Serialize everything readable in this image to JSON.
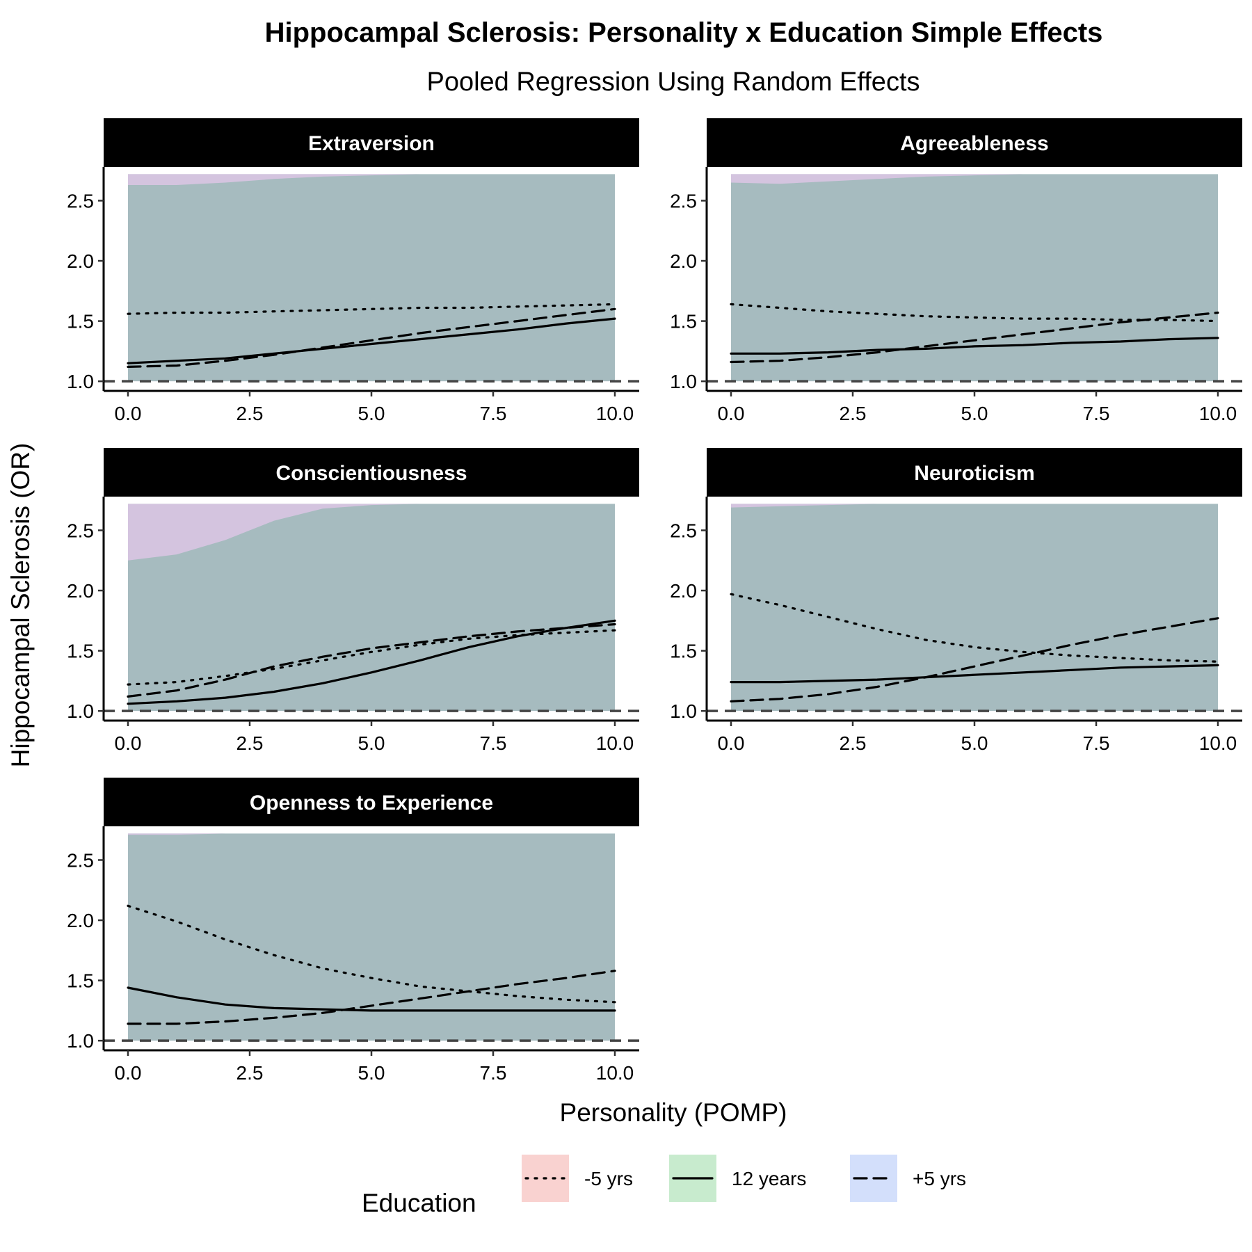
{
  "chart_data": {
    "type": "line",
    "title": "Hippocampal Sclerosis: Personality x Education Simple Effects",
    "subtitle": "Pooled Regression Using Random Effects",
    "xlabel": "Personality (POMP)",
    "ylabel": "Hippocampal Sclerosis (OR)",
    "xlim": [
      -0.5,
      10.5
    ],
    "ylim": [
      0.92,
      2.78
    ],
    "x_ticks": [
      0,
      2.5,
      5,
      7.5,
      10
    ],
    "x_tick_labels": [
      "0.0",
      "2.5",
      "5.0",
      "7.5",
      "10.0"
    ],
    "y_ticks": [
      1.0,
      1.5,
      2.0,
      2.5
    ],
    "y_tick_labels": [
      "1.0",
      "1.5",
      "2.0",
      "2.5"
    ],
    "reference_line": 1.0,
    "grid": false,
    "band_colors": {
      "-5 yrs": "#F8766D",
      "12 years": "#00BA38",
      "+5 yrs": "#619CFF"
    },
    "band_fill_color": "#A6BBBF",
    "top_tint_color": "#D4C4DF",
    "legend": {
      "title": "Education",
      "position": "bottom",
      "entries": [
        {
          "label": "-5 yrs",
          "linetype": "dotted",
          "fill": "#F9D2D0"
        },
        {
          "label": "12 years",
          "linetype": "solid",
          "fill": "#C8EBCE"
        },
        {
          "label": "+5 yrs",
          "linetype": "dashed",
          "fill": "#D3DFFB"
        }
      ]
    },
    "panels": [
      {
        "name": "Extraversion",
        "x": [
          0,
          1,
          2,
          3,
          4,
          5,
          6,
          7,
          8,
          9,
          10
        ],
        "band_upper": 2.72,
        "band_lower": 1.0,
        "tint_lower": [
          2.63,
          2.63,
          2.65,
          2.68,
          2.7,
          2.71,
          2.72,
          2.72,
          2.72,
          2.72,
          2.72
        ],
        "series": [
          {
            "name": "-5 yrs",
            "linetype": "dotted",
            "values": [
              1.56,
              1.57,
              1.57,
              1.58,
              1.59,
              1.6,
              1.61,
              1.61,
              1.62,
              1.63,
              1.64
            ]
          },
          {
            "name": "12 years",
            "linetype": "solid",
            "values": [
              1.15,
              1.17,
              1.19,
              1.23,
              1.27,
              1.31,
              1.35,
              1.39,
              1.43,
              1.48,
              1.52
            ]
          },
          {
            "name": "+5 yrs",
            "linetype": "dashed",
            "values": [
              1.12,
              1.13,
              1.17,
              1.22,
              1.28,
              1.34,
              1.4,
              1.45,
              1.5,
              1.55,
              1.6
            ]
          }
        ]
      },
      {
        "name": "Agreeableness",
        "x": [
          0,
          1,
          2,
          3,
          4,
          5,
          6,
          7,
          8,
          9,
          10
        ],
        "band_upper": 2.72,
        "band_lower": 1.0,
        "tint_lower": [
          2.65,
          2.64,
          2.66,
          2.68,
          2.7,
          2.71,
          2.72,
          2.72,
          2.72,
          2.72,
          2.72
        ],
        "series": [
          {
            "name": "-5 yrs",
            "linetype": "dotted",
            "values": [
              1.64,
              1.61,
              1.58,
              1.56,
              1.54,
              1.53,
              1.52,
              1.52,
              1.51,
              1.51,
              1.5
            ]
          },
          {
            "name": "12 years",
            "linetype": "solid",
            "values": [
              1.23,
              1.23,
              1.24,
              1.26,
              1.27,
              1.29,
              1.3,
              1.32,
              1.33,
              1.35,
              1.36
            ]
          },
          {
            "name": "+5 yrs",
            "linetype": "dashed",
            "values": [
              1.16,
              1.17,
              1.2,
              1.24,
              1.29,
              1.34,
              1.39,
              1.44,
              1.49,
              1.53,
              1.57
            ]
          }
        ]
      },
      {
        "name": "Conscientiousness",
        "x": [
          0,
          1,
          2,
          3,
          4,
          5,
          6,
          7,
          8,
          9,
          10
        ],
        "band_upper": 2.72,
        "band_lower": 1.0,
        "tint_lower": [
          2.25,
          2.3,
          2.42,
          2.58,
          2.68,
          2.71,
          2.72,
          2.72,
          2.72,
          2.72,
          2.72
        ],
        "series": [
          {
            "name": "-5 yrs",
            "linetype": "dotted",
            "values": [
              1.22,
              1.24,
              1.29,
              1.35,
              1.42,
              1.49,
              1.55,
              1.6,
              1.63,
              1.65,
              1.67
            ]
          },
          {
            "name": "12 years",
            "linetype": "solid",
            "values": [
              1.06,
              1.08,
              1.11,
              1.16,
              1.23,
              1.32,
              1.42,
              1.53,
              1.62,
              1.69,
              1.75
            ]
          },
          {
            "name": "+5 yrs",
            "linetype": "dashed",
            "values": [
              1.12,
              1.17,
              1.26,
              1.37,
              1.45,
              1.52,
              1.57,
              1.62,
              1.66,
              1.69,
              1.72
            ]
          }
        ]
      },
      {
        "name": "Neuroticism",
        "x": [
          0,
          1,
          2,
          3,
          4,
          5,
          6,
          7,
          8,
          9,
          10
        ],
        "band_upper": 2.72,
        "band_lower": 1.0,
        "tint_lower": [
          2.69,
          2.7,
          2.71,
          2.72,
          2.72,
          2.72,
          2.72,
          2.72,
          2.72,
          2.72,
          2.72
        ],
        "series": [
          {
            "name": "-5 yrs",
            "linetype": "dotted",
            "values": [
              1.97,
              1.88,
              1.78,
              1.68,
              1.59,
              1.53,
              1.49,
              1.46,
              1.44,
              1.42,
              1.41
            ]
          },
          {
            "name": "12 years",
            "linetype": "solid",
            "values": [
              1.24,
              1.24,
              1.25,
              1.26,
              1.28,
              1.3,
              1.32,
              1.34,
              1.36,
              1.37,
              1.38
            ]
          },
          {
            "name": "+5 yrs",
            "linetype": "dashed",
            "values": [
              1.08,
              1.1,
              1.14,
              1.2,
              1.28,
              1.37,
              1.46,
              1.55,
              1.63,
              1.7,
              1.77
            ]
          }
        ]
      },
      {
        "name": "Openness to Experience",
        "x": [
          0,
          1,
          2,
          3,
          4,
          5,
          6,
          7,
          8,
          9,
          10
        ],
        "band_upper": 2.72,
        "band_lower": 1.0,
        "tint_lower": [
          2.71,
          2.71,
          2.72,
          2.72,
          2.72,
          2.72,
          2.72,
          2.72,
          2.72,
          2.72,
          2.72
        ],
        "series": [
          {
            "name": "-5 yrs",
            "linetype": "dotted",
            "values": [
              2.12,
              1.99,
              1.84,
              1.71,
              1.6,
              1.52,
              1.45,
              1.41,
              1.37,
              1.34,
              1.32
            ]
          },
          {
            "name": "12 years",
            "linetype": "solid",
            "values": [
              1.44,
              1.36,
              1.3,
              1.27,
              1.26,
              1.25,
              1.25,
              1.25,
              1.25,
              1.25,
              1.25
            ]
          },
          {
            "name": "+5 yrs",
            "linetype": "dashed",
            "values": [
              1.14,
              1.14,
              1.16,
              1.19,
              1.23,
              1.29,
              1.35,
              1.41,
              1.47,
              1.52,
              1.58
            ]
          }
        ]
      }
    ]
  }
}
